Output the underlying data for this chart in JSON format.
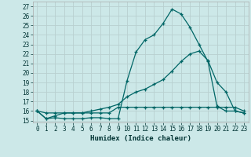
{
  "xlabel": "Humidex (Indice chaleur)",
  "background_color": "#cce8e8",
  "grid_color": "#b8d0d0",
  "line_color": "#006666",
  "xlim": [
    -0.5,
    23.5
  ],
  "ylim": [
    14.8,
    27.5
  ],
  "yticks": [
    15,
    16,
    17,
    18,
    19,
    20,
    21,
    22,
    23,
    24,
    25,
    26,
    27
  ],
  "xticks": [
    0,
    1,
    2,
    3,
    4,
    5,
    6,
    7,
    8,
    9,
    10,
    11,
    12,
    13,
    14,
    15,
    16,
    17,
    18,
    19,
    20,
    21,
    22,
    23
  ],
  "series1_x": [
    0,
    1,
    2,
    3,
    4,
    5,
    6,
    7,
    8,
    9,
    10,
    11,
    12,
    13,
    14,
    15,
    16,
    17,
    18,
    19,
    20,
    21,
    22,
    23
  ],
  "series1_y": [
    16.0,
    15.2,
    15.3,
    15.2,
    15.2,
    15.2,
    15.3,
    15.3,
    15.2,
    15.2,
    19.2,
    22.2,
    23.5,
    24.0,
    25.2,
    26.7,
    26.2,
    24.8,
    23.0,
    21.2,
    16.5,
    16.0,
    16.0,
    15.8
  ],
  "series2_x": [
    0,
    1,
    2,
    3,
    4,
    5,
    6,
    7,
    8,
    9,
    10,
    11,
    12,
    13,
    14,
    15,
    16,
    17,
    18,
    19,
    20,
    21,
    22,
    23
  ],
  "series2_y": [
    16.0,
    15.2,
    15.5,
    15.8,
    15.8,
    15.8,
    16.0,
    16.2,
    16.4,
    16.7,
    17.5,
    18.0,
    18.3,
    18.8,
    19.3,
    20.2,
    21.2,
    22.0,
    22.3,
    21.3,
    19.0,
    18.0,
    16.0,
    15.8
  ],
  "series3_x": [
    0,
    1,
    2,
    3,
    4,
    5,
    6,
    7,
    8,
    9,
    10,
    11,
    12,
    13,
    14,
    15,
    16,
    17,
    18,
    19,
    20,
    21,
    22,
    23
  ],
  "series3_y": [
    16.0,
    15.8,
    15.8,
    15.8,
    15.8,
    15.8,
    15.8,
    15.8,
    15.8,
    16.4,
    16.4,
    16.4,
    16.4,
    16.4,
    16.4,
    16.4,
    16.4,
    16.4,
    16.4,
    16.4,
    16.4,
    16.4,
    16.4,
    16.0
  ]
}
